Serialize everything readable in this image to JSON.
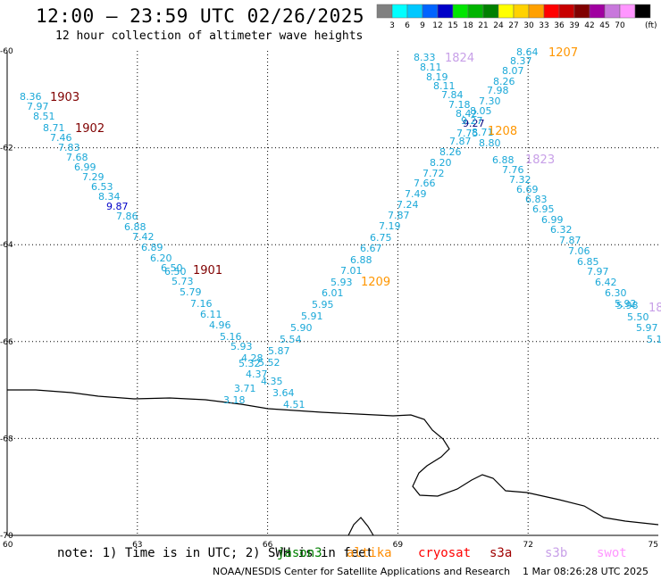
{
  "header": {
    "title": "12:00 – 23:59 UTC 02/26/2025",
    "subtitle": "12 hour collection of altimeter wave heights"
  },
  "colorbar": {
    "unit": "(ft)",
    "bins": [
      {
        "label": "",
        "color": "#808080"
      },
      {
        "label": "3",
        "color": "#00ffff"
      },
      {
        "label": "6",
        "color": "#00c8ff"
      },
      {
        "label": "9",
        "color": "#0064ff"
      },
      {
        "label": "12",
        "color": "#0000c8"
      },
      {
        "label": "15",
        "color": "#00e600"
      },
      {
        "label": "18",
        "color": "#00b400"
      },
      {
        "label": "21",
        "color": "#008000"
      },
      {
        "label": "24",
        "color": "#ffff00"
      },
      {
        "label": "27",
        "color": "#ffd200"
      },
      {
        "label": "30",
        "color": "#ffa000"
      },
      {
        "label": "33",
        "color": "#ff0000"
      },
      {
        "label": "36",
        "color": "#c80000"
      },
      {
        "label": "39",
        "color": "#800000"
      },
      {
        "label": "42",
        "color": "#a000a0"
      },
      {
        "label": "45",
        "color": "#c878dc"
      },
      {
        "label": "70",
        "color": "#ff96ff"
      },
      {
        "label": "",
        "color": "#000000"
      }
    ]
  },
  "map": {
    "lon_range": [
      60,
      75
    ],
    "lat_range": [
      -70,
      -60
    ],
    "x_ticks": [
      "60",
      "63",
      "66",
      "69",
      "72",
      "75"
    ],
    "y_ticks": [
      "-60",
      "-62",
      "-64",
      "-66",
      "-68",
      "-70"
    ],
    "grid": true
  },
  "passes": [
    {
      "id": "1903",
      "color": "#800000"
    },
    {
      "id": "1902",
      "color": "#800000"
    },
    {
      "id": "1901",
      "color": "#800000"
    },
    {
      "id": "1824",
      "color": "#c8a0e8"
    },
    {
      "id": "1823",
      "color": "#c8a0e8"
    },
    {
      "id": "1207",
      "color": "#ff9600"
    },
    {
      "id": "1208",
      "color": "#ff9600"
    },
    {
      "id": "1209",
      "color": "#ff9600"
    }
  ],
  "swh_values_ft": [
    "8.36",
    "7.97",
    "8.51",
    "8.71",
    "7.46",
    "7.83",
    "7.68",
    "6.99",
    "7.29",
    "6.53",
    "8.34",
    "9.87",
    "7.86",
    "6.88",
    "7.42",
    "6.89",
    "6.20",
    "6.50",
    "6.50",
    "5.73",
    "5.79",
    "7.16",
    "6.11",
    "4.96",
    "5.16",
    "5.93",
    "4.28",
    "5.32",
    "4.37",
    "3.71",
    "3.18",
    "8.33",
    "8.11",
    "8.19",
    "8.11",
    "7.84",
    "7.18",
    "8.42",
    "9.27",
    "7.75",
    "7.87",
    "8.26",
    "8.20",
    "7.72",
    "7.66",
    "7.49",
    "7.24",
    "7.87",
    "7.19",
    "6.75",
    "6.67",
    "6.88",
    "7.01",
    "5.93",
    "6.01",
    "5.95",
    "5.91",
    "5.90",
    "5.54",
    "5.87",
    "5.52",
    "4.35",
    "3.64",
    "4.51",
    "8.64",
    "8.37",
    "8.07",
    "8.26",
    "7.98",
    "7.30",
    "8.05",
    "9.27",
    "8.71",
    "8.80",
    "6.88",
    "7.76",
    "7.32",
    "6.69",
    "6.83",
    "6.95",
    "6.99",
    "6.32",
    "7.87",
    "7.06",
    "6.85",
    "7.97",
    "6.42",
    "6.30",
    "5.92",
    "5.98",
    "5.50",
    "5.97",
    "5.1"
  ],
  "note": "note:  1) Time is in UTC; 2) SWH is in feet",
  "satellites": [
    {
      "name": "jason3",
      "color": "#008000"
    },
    {
      "name": "altika",
      "color": "#ff8c00"
    },
    {
      "name": "cryosat",
      "color": "#ff0000"
    },
    {
      "name": "s3a",
      "color": "#a00000"
    },
    {
      "name": "s3b",
      "color": "#c8a0e8"
    },
    {
      "name": "swot",
      "color": "#ff96ff"
    }
  ],
  "footer": {
    "org": "NOAA/NESDIS Center for Satellite Applications and Research",
    "timestamp": "1 Mar 08:26:28 UTC 2025"
  }
}
